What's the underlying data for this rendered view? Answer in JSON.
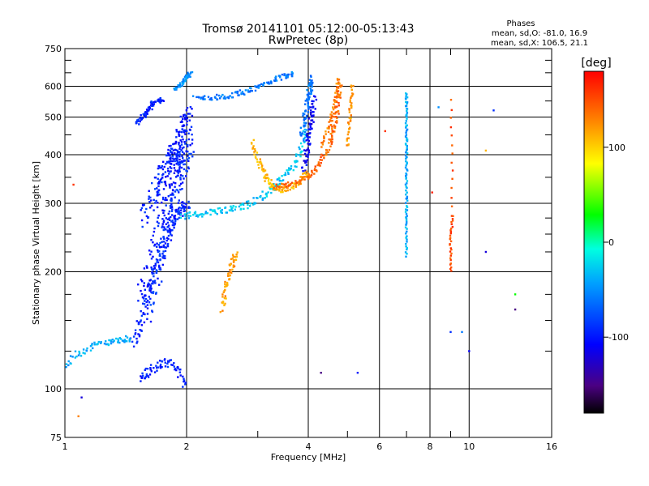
{
  "header": {
    "title": "Tromsø 20141101 05:12:00-05:13:43",
    "subtitle": "RwPretec (8p)"
  },
  "stats": {
    "heading": "Phases",
    "line_o": "mean, sd,O: -81.0, 16.9",
    "line_x": "mean, sd,X: 106.5, 21.1"
  },
  "colorbar": {
    "unit": "[deg]",
    "ticks": [
      {
        "value": 100,
        "label": "100"
      },
      {
        "value": 0,
        "label": "0"
      },
      {
        "value": -100,
        "label": "-100"
      }
    ],
    "range": [
      -180,
      180
    ]
  },
  "chart_data": {
    "type": "scatter",
    "title": "Tromsø 20141101 05:12:00-05:13:43",
    "subtitle": "RwPretec (8p)",
    "xlabel": "Frequency [MHz]",
    "ylabel": "Stationary phase Virtual Height [km]",
    "x_scale": "log",
    "y_scale": "log",
    "xlim": [
      1,
      16
    ],
    "ylim": [
      75,
      750
    ],
    "x_ticks": [
      {
        "value": 1,
        "label": "1"
      },
      {
        "value": 2,
        "label": "2"
      },
      {
        "value": 4,
        "label": "4"
      },
      {
        "value": 6,
        "label": "6"
      },
      {
        "value": 8,
        "label": "8"
      },
      {
        "value": 10,
        "label": "10"
      },
      {
        "value": 16,
        "label": "16"
      }
    ],
    "y_ticks": [
      {
        "value": 75,
        "label": "75"
      },
      {
        "value": 100,
        "label": "100"
      },
      {
        "value": 200,
        "label": "200"
      },
      {
        "value": 300,
        "label": "300"
      },
      {
        "value": 400,
        "label": "400"
      },
      {
        "value": 500,
        "label": "500"
      },
      {
        "value": 600,
        "label": "600"
      },
      {
        "value": 750,
        "label": "750"
      }
    ],
    "x_gridlines": [
      2,
      4,
      6,
      8,
      10
    ],
    "x_minor_ticks": [
      3,
      5,
      7,
      9
    ],
    "y_gridlines": [
      100,
      200,
      300,
      400,
      500,
      600
    ],
    "y_minor_ticks": [
      125,
      150,
      175,
      225,
      250,
      275,
      350,
      450,
      550,
      650,
      700
    ],
    "grid": true,
    "color_scale": "phase [deg]",
    "traces": [
      {
        "f": [
          1.47,
          1.52,
          1.57,
          1.62,
          1.67,
          1.72,
          1.77,
          1.82,
          1.87,
          1.92,
          1.97,
          2.0
        ],
        "h": [
          130,
          143,
          160,
          178,
          198,
          220,
          240,
          260,
          275,
          285,
          292,
          298
        ],
        "phase": -95,
        "spread": 0.05
      },
      {
        "f": [
          1.55,
          1.6,
          1.65,
          1.7,
          1.75,
          1.8,
          1.85,
          1.9,
          1.95,
          2.0,
          2.03
        ],
        "h": [
          170,
          195,
          220,
          250,
          275,
          300,
          330,
          360,
          400,
          440,
          480
        ],
        "phase": -100,
        "spread": 0.07
      },
      {
        "f": [
          1.58,
          1.64,
          1.7,
          1.76,
          1.82,
          1.88,
          1.94,
          2.0,
          2.03
        ],
        "h": [
          150,
          175,
          205,
          235,
          270,
          310,
          350,
          400,
          430
        ],
        "phase": -88,
        "spread": 0.07
      },
      {
        "f": [
          1.56,
          1.62,
          1.68,
          1.74,
          1.8,
          1.86,
          1.92,
          1.98
        ],
        "h": [
          270,
          300,
          330,
          360,
          385,
          400,
          390,
          370
        ],
        "phase": -92,
        "spread": 0.06
      },
      {
        "f": [
          1.7,
          1.75,
          1.8,
          1.85,
          1.9,
          1.95,
          2.0,
          2.03
        ],
        "h": [
          300,
          340,
          380,
          410,
          440,
          470,
          500,
          520
        ],
        "phase": -100,
        "spread": 0.05
      },
      {
        "f": [
          1.5,
          1.55,
          1.6,
          1.65,
          1.7,
          1.75
        ],
        "h": [
          480,
          500,
          520,
          540,
          550,
          560
        ],
        "phase": -95,
        "spread": 0.03
      },
      {
        "f": [
          1.95,
          2.1,
          2.3,
          2.5,
          2.7,
          2.9,
          3.1,
          3.3,
          3.5,
          3.7,
          3.85,
          3.95
        ],
        "h": [
          278,
          280,
          285,
          288,
          293,
          300,
          315,
          330,
          350,
          380,
          420,
          470
        ],
        "phase": -30,
        "spread": 0.03
      },
      {
        "f": [
          3.85,
          3.9,
          3.95,
          4.0,
          4.05,
          4.1
        ],
        "h": [
          440,
          480,
          520,
          560,
          600,
          630
        ],
        "phase": -60,
        "spread": 0.03
      },
      {
        "f": [
          3.9,
          3.95,
          4.0,
          4.05,
          4.1,
          4.15
        ],
        "h": [
          360,
          400,
          440,
          480,
          520,
          560
        ],
        "phase": -110,
        "spread": 0.03
      },
      {
        "f": [
          2.9,
          3.0,
          3.1,
          3.2,
          3.3,
          3.45,
          3.65,
          3.85,
          4.0
        ],
        "h": [
          430,
          390,
          360,
          340,
          330,
          325,
          330,
          345,
          360
        ],
        "phase": 110,
        "spread": 0.03
      },
      {
        "f": [
          3.3,
          3.6,
          3.9,
          4.1,
          4.3,
          4.5,
          4.6,
          4.7,
          4.75,
          4.8
        ],
        "h": [
          330,
          335,
          345,
          360,
          385,
          420,
          460,
          500,
          560,
          620
        ],
        "phase": 140,
        "spread": 0.025
      },
      {
        "f": [
          4.3,
          4.5,
          4.6,
          4.7,
          4.75
        ],
        "h": [
          420,
          470,
          520,
          570,
          630
        ],
        "phase": 130,
        "spread": 0.02
      },
      {
        "f": [
          2.1,
          2.3,
          2.5,
          2.7,
          2.9,
          3.1,
          3.3,
          3.5,
          3.7
        ],
        "h": [
          560,
          560,
          565,
          575,
          590,
          605,
          625,
          640,
          650
        ],
        "phase": -60,
        "spread": 0.025
      },
      {
        "f": [
          1.87,
          1.95,
          2.0,
          2.05
        ],
        "h": [
          590,
          610,
          630,
          650
        ],
        "phase": -50,
        "spread": 0.02
      },
      {
        "f": [
          2.45,
          2.5,
          2.55,
          2.6,
          2.65
        ],
        "h": [
          160,
          180,
          195,
          210,
          225
        ],
        "phase": 120,
        "spread": 0.03
      },
      {
        "f": [
          1.55,
          1.6,
          1.7,
          1.8,
          1.9,
          1.98
        ],
        "h": [
          105,
          110,
          115,
          118,
          112,
          102
        ],
        "phase": -95,
        "spread": 0.04
      },
      {
        "f": [
          1.0,
          1.1,
          1.2,
          1.3,
          1.4,
          1.45
        ],
        "h": [
          115,
          125,
          130,
          132,
          133,
          135
        ],
        "phase": -40,
        "spread": 0.03
      },
      {
        "f": [
          5.0,
          5.05,
          5.1,
          5.15
        ],
        "h": [
          420,
          480,
          540,
          610
        ],
        "phase": 120,
        "spread": 0.015
      },
      {
        "f": [
          7.0,
          7.0,
          7.0,
          7.0,
          7.0,
          7.0,
          7.0,
          7.0
        ],
        "h": [
          220,
          260,
          300,
          350,
          400,
          450,
          520,
          580
        ],
        "phase": -40,
        "spread": 0.01
      },
      {
        "f": [
          9.0,
          9.0,
          9.1,
          9.0
        ],
        "h": [
          200,
          240,
          280,
          580
        ],
        "phase": 150,
        "spread": 0.01
      }
    ],
    "scatter_points": [
      {
        "f": 8.1,
        "h": 320,
        "phase": 170
      },
      {
        "f": 9.0,
        "h": 140,
        "phase": -90
      },
      {
        "f": 9.6,
        "h": 140,
        "phase": -60
      },
      {
        "f": 10.0,
        "h": 125,
        "phase": -110
      },
      {
        "f": 11.0,
        "h": 410,
        "phase": 110
      },
      {
        "f": 11.5,
        "h": 520,
        "phase": -90
      },
      {
        "f": 13.0,
        "h": 160,
        "phase": -150
      },
      {
        "f": 13.0,
        "h": 175,
        "phase": 30
      },
      {
        "f": 11.0,
        "h": 225,
        "phase": -120
      },
      {
        "f": 4.3,
        "h": 110,
        "phase": -150
      },
      {
        "f": 5.3,
        "h": 110,
        "phase": -100
      },
      {
        "f": 1.05,
        "h": 335,
        "phase": 160
      },
      {
        "f": 1.1,
        "h": 95,
        "phase": -120
      },
      {
        "f": 1.08,
        "h": 85,
        "phase": 130
      },
      {
        "f": 6.2,
        "h": 460,
        "phase": 160
      },
      {
        "f": 8.4,
        "h": 530,
        "phase": -50
      }
    ]
  }
}
